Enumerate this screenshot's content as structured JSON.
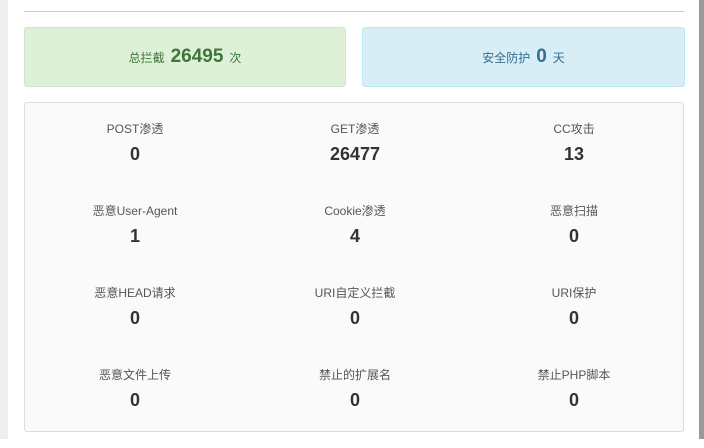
{
  "summary": {
    "total_label": "总拦截",
    "total_value": "26495",
    "total_unit": "次",
    "days_label": "安全防护",
    "days_value": "0",
    "days_unit": "天"
  },
  "colors": {
    "green_bg": "#dff0d8",
    "blue_bg": "#d9edf7"
  },
  "stats": [
    {
      "label": "POST渗透",
      "value": "0"
    },
    {
      "label": "GET渗透",
      "value": "26477"
    },
    {
      "label": "CC攻击",
      "value": "13"
    },
    {
      "label": "恶意User-Agent",
      "value": "1"
    },
    {
      "label": "Cookie渗透",
      "value": "4"
    },
    {
      "label": "恶意扫描",
      "value": "0"
    },
    {
      "label": "恶意HEAD请求",
      "value": "0"
    },
    {
      "label": "URI自定义拦截",
      "value": "0"
    },
    {
      "label": "URI保护",
      "value": "0"
    },
    {
      "label": "恶意文件上传",
      "value": "0"
    },
    {
      "label": "禁止的扩展名",
      "value": "0"
    },
    {
      "label": "禁止PHP脚本",
      "value": "0"
    }
  ]
}
